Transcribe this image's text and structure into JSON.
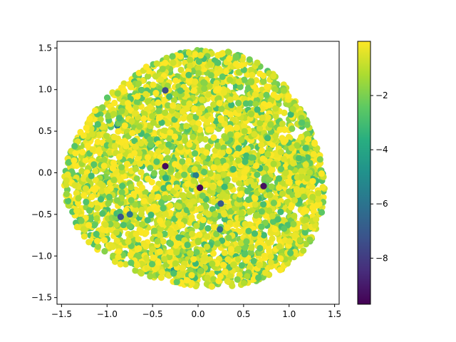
{
  "chart_data": {
    "type": "scatter",
    "title": "",
    "xlabel": "",
    "ylabel": "",
    "xlim": [
      -1.55,
      1.55
    ],
    "ylim": [
      -1.58,
      1.58
    ],
    "xticks": [
      -1.5,
      -1.0,
      -0.5,
      0.0,
      0.5,
      1.0,
      1.5
    ],
    "xtick_labels": [
      "−1.5",
      "−1.0",
      "−0.5",
      "0.0",
      "0.5",
      "1.0",
      "1.5"
    ],
    "yticks": [
      -1.5,
      -1.0,
      -0.5,
      0.0,
      0.5,
      1.0,
      1.5
    ],
    "ytick_labels": [
      "−1.5",
      "−1.0",
      "−0.5",
      "0.0",
      "0.5",
      "1.0",
      "1.5"
    ],
    "grid": false,
    "colormap": "viridis",
    "color_range": [
      -9.7,
      0
    ],
    "colorbar": {
      "ticks": [
        -2,
        -4,
        -6,
        -8
      ],
      "tick_labels": [
        "−2",
        "−4",
        "−6",
        "−8"
      ]
    },
    "point_cloud": {
      "description_of_shape": "dense rounded-triangular blob, about 4000 points",
      "count": 4000,
      "boundary_radius": 1.42,
      "value_distribution": "mostly between -2 and 0, few outliers down to -9.7"
    },
    "highlighted_points": [
      {
        "x": -0.36,
        "y": 0.08,
        "value": -9.4
      },
      {
        "x": 0.02,
        "y": -0.18,
        "value": -9.6
      },
      {
        "x": 0.72,
        "y": -0.16,
        "value": -9.3
      },
      {
        "x": 0.25,
        "y": -0.37,
        "value": -7.0
      },
      {
        "x": -0.85,
        "y": -0.53,
        "value": -7.2
      },
      {
        "x": -0.36,
        "y": 0.99,
        "value": -7.5
      },
      {
        "x": 0.24,
        "y": -0.68,
        "value": -6.2
      },
      {
        "x": -0.75,
        "y": -0.5,
        "value": -6.0
      }
    ]
  }
}
